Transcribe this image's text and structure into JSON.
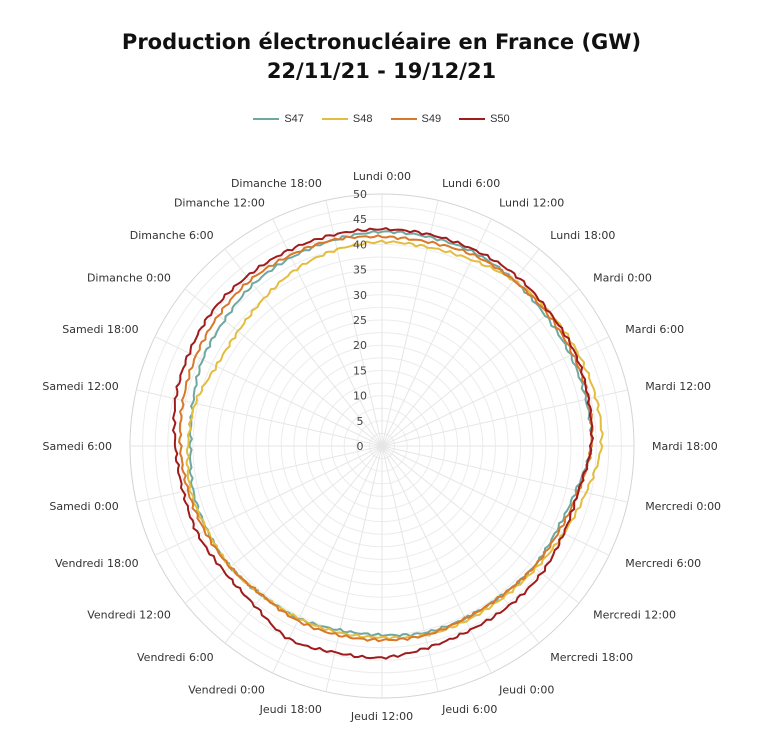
{
  "chart_data": {
    "type": "radar",
    "title_line1": "Production électronucléaire en France (GW)",
    "title_line2": "22/11/21 - 19/12/21",
    "radial_ticks": [
      "0",
      "5",
      "10",
      "15",
      "20",
      "25",
      "30",
      "35",
      "40",
      "45",
      "50"
    ],
    "r_range": [
      0,
      50
    ],
    "grid": true,
    "legend_position": "top",
    "categories": [
      "Lundi 0:00",
      "Lundi 6:00",
      "Lundi 12:00",
      "Lundi 18:00",
      "Mardi 0:00",
      "Mardi 6:00",
      "Mardi 12:00",
      "Mardi 18:00",
      "Mercredi 0:00",
      "Mercredi 6:00",
      "Mercredi 12:00",
      "Mercredi 18:00",
      "Jeudi 0:00",
      "Jeudi 6:00",
      "Jeudi 12:00",
      "Jeudi 18:00",
      "Vendredi 0:00",
      "Vendredi 6:00",
      "Vendredi 12:00",
      "Vendredi 18:00",
      "Samedi 0:00",
      "Samedi 6:00",
      "Samedi 12:00",
      "Samedi 18:00",
      "Dimanche 0:00",
      "Dimanche 6:00",
      "Dimanche 12:00",
      "Dimanche 18:00"
    ],
    "series": [
      {
        "name": "S47",
        "color": "#6fa8a0",
        "values": [
          42.5,
          42.5,
          42.5,
          42.0,
          41.5,
          41.5,
          41.5,
          41.5,
          39.5,
          38.5,
          38.5,
          38.0,
          38.0,
          38.0,
          37.5,
          37.5,
          38.0,
          38.0,
          38.5,
          38.5,
          38.5,
          38.0,
          38.5,
          39.5,
          40.0,
          41.0,
          41.5,
          42.0
        ]
      },
      {
        "name": "S48",
        "color": "#e3bd3f",
        "values": [
          40.5,
          40.5,
          41.0,
          42.0,
          42.5,
          43.0,
          43.5,
          43.5,
          41.5,
          40.0,
          39.0,
          38.5,
          38.5,
          38.5,
          38.0,
          38.0,
          38.0,
          38.0,
          38.5,
          38.5,
          39.0,
          38.5,
          38.0,
          36.5,
          36.5,
          37.5,
          39.0,
          40.0
        ]
      },
      {
        "name": "S49",
        "color": "#d9782a",
        "values": [
          41.5,
          41.5,
          42.0,
          42.0,
          42.0,
          42.0,
          42.0,
          41.5,
          40.0,
          39.0,
          38.5,
          38.0,
          38.0,
          38.5,
          38.5,
          38.5,
          38.5,
          38.0,
          38.5,
          39.0,
          39.5,
          40.0,
          40.5,
          41.0,
          41.5,
          42.0,
          42.0,
          42.0
        ]
      },
      {
        "name": "S50",
        "color": "#a01c1c",
        "values": [
          43.0,
          43.0,
          43.0,
          43.0,
          42.5,
          42.5,
          42.0,
          41.5,
          40.0,
          40.0,
          40.5,
          40.5,
          40.5,
          41.0,
          42.0,
          42.0,
          42.5,
          40.5,
          40.0,
          40.5,
          40.5,
          41.0,
          42.0,
          42.5,
          43.0,
          43.0,
          43.0,
          43.0
        ]
      }
    ]
  }
}
